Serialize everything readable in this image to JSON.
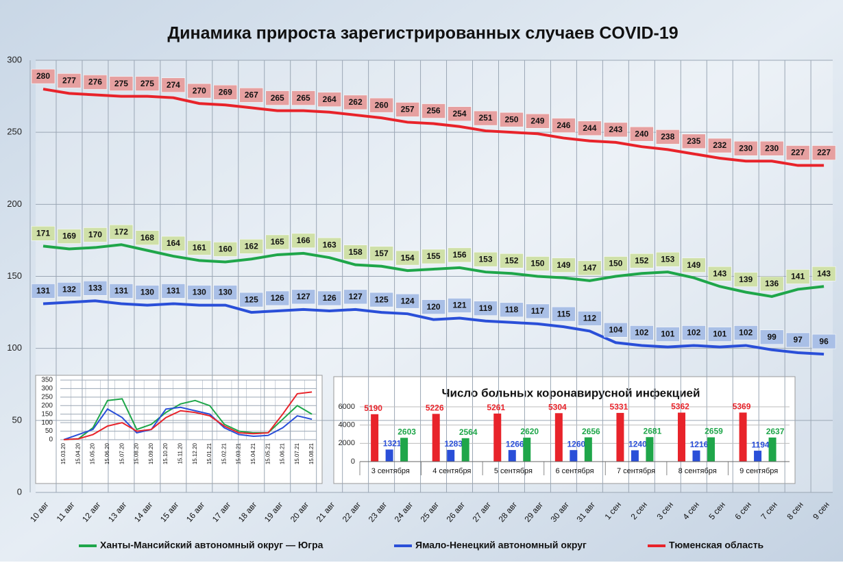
{
  "chart_data": [
    {
      "type": "line",
      "title": "Динамика прироста зарегистрированных случаев COVID-19",
      "categories": [
        "10 авг",
        "11 авг",
        "12 авг",
        "13 авг",
        "14 авг",
        "15 авг",
        "16 авг",
        "17 авг",
        "18 авг",
        "19 авг",
        "20 авг",
        "21 авг",
        "22 авг",
        "23 авг",
        "24 авг",
        "25 авг",
        "26 авг",
        "27 авг",
        "28 авг",
        "29 авг",
        "30 авг",
        "31 авг",
        "1 сен",
        "2 сен",
        "3 сен",
        "4 сен",
        "5 сен",
        "6 сен",
        "7 сен",
        "8 сен",
        "9 сен"
      ],
      "series": [
        {
          "name": "Ханты-Мансийский автономный округ — Югра",
          "color": "#1fa64a",
          "label_color": "#cfe0a8",
          "values": [
            171,
            169,
            170,
            172,
            168,
            164,
            161,
            160,
            162,
            165,
            166,
            163,
            158,
            157,
            154,
            155,
            156,
            153,
            152,
            150,
            149,
            147,
            150,
            152,
            153,
            149,
            143,
            139,
            136,
            141,
            143
          ]
        },
        {
          "name": "Ямало-Ненецкий автономный округ",
          "color": "#2a4fd8",
          "label_color": "#a9bfe6",
          "values": [
            131,
            132,
            133,
            131,
            130,
            131,
            130,
            130,
            125,
            126,
            127,
            126,
            127,
            125,
            124,
            120,
            121,
            119,
            118,
            117,
            115,
            112,
            104,
            102,
            101,
            102,
            101,
            102,
            99,
            97,
            96
          ]
        },
        {
          "name": "Тюменская область",
          "color": "#e8232a",
          "label_color": "#e6a0a0",
          "values": [
            280,
            277,
            276,
            275,
            275,
            274,
            270,
            269,
            267,
            265,
            265,
            264,
            262,
            260,
            257,
            256,
            254,
            251,
            250,
            249,
            246,
            244,
            243,
            240,
            238,
            235,
            232,
            230,
            230,
            227,
            227
          ]
        }
      ],
      "ylim": [
        0,
        300
      ],
      "yticks": [
        0,
        50,
        100,
        150,
        200,
        250,
        300
      ],
      "grid": true,
      "legend": "bottom"
    },
    {
      "type": "line",
      "x": [
        "15.03.20",
        "15.04.20",
        "15.05.20",
        "15.06.20",
        "15.07.20",
        "15.08.20",
        "15.09.20",
        "15.10.20",
        "15.11.20",
        "15.12.20",
        "15.01.21",
        "15.02.21",
        "15.03.21",
        "15.04.21",
        "15.05.21",
        "15.06.21",
        "15.07.21",
        "15.08.21"
      ],
      "series": [
        {
          "color": "#1fa64a",
          "values": [
            0,
            5,
            70,
            230,
            240,
            60,
            90,
            160,
            210,
            230,
            200,
            90,
            50,
            40,
            40,
            120,
            200,
            150
          ]
        },
        {
          "color": "#2a4fd8",
          "values": [
            0,
            30,
            60,
            180,
            130,
            40,
            60,
            180,
            190,
            170,
            150,
            70,
            30,
            20,
            25,
            70,
            140,
            120
          ]
        },
        {
          "color": "#e8232a",
          "values": [
            0,
            5,
            30,
            80,
            100,
            50,
            60,
            130,
            170,
            160,
            140,
            80,
            40,
            35,
            40,
            150,
            270,
            280
          ]
        }
      ],
      "ylim": [
        0,
        350
      ],
      "yticks": [
        0,
        50,
        100,
        150,
        200,
        250,
        300,
        350
      ],
      "grid": true
    },
    {
      "type": "bar",
      "title": "Число больных коронавирусной инфекцией",
      "categories": [
        "3 сентября",
        "4 сентября",
        "5 сентября",
        "6 сентября",
        "7 сентября",
        "8 сентября",
        "9 сентября"
      ],
      "series": [
        {
          "color": "#e8232a",
          "values": [
            5190,
            5226,
            5261,
            5304,
            5331,
            5362,
            5369
          ]
        },
        {
          "color": "#2a4fd8",
          "values": [
            1321,
            1283,
            1266,
            1260,
            1240,
            1216,
            1194
          ]
        },
        {
          "color": "#1fa64a",
          "values": [
            2603,
            2564,
            2620,
            2656,
            2681,
            2659,
            2637
          ]
        }
      ],
      "ylim": [
        0,
        6000
      ],
      "yticks": [
        0,
        2000,
        4000,
        6000
      ],
      "grid": true
    }
  ]
}
